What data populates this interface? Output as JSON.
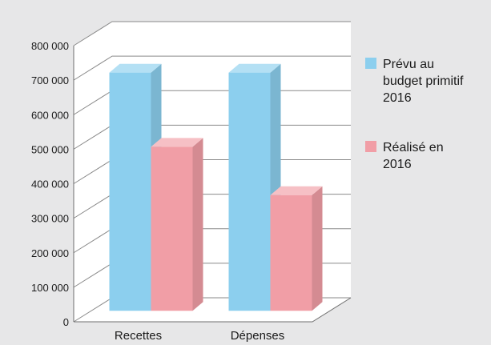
{
  "chart_data": {
    "type": "bar",
    "title": "",
    "xlabel": "",
    "ylabel": "",
    "categories": [
      "Recettes",
      "Dépenses"
    ],
    "series": [
      {
        "name": "Prévu au budget primitif 2016",
        "values": [
          690000,
          690000
        ],
        "color": "#8ccfee"
      },
      {
        "name": "Réalisé en 2016",
        "values": [
          475000,
          335000
        ],
        "color": "#f19ea6"
      }
    ],
    "ylim": [
      0,
      800000
    ],
    "yticks": [
      0,
      100000,
      200000,
      300000,
      400000,
      500000,
      600000,
      700000,
      800000
    ],
    "ytick_labels": [
      "0",
      "100 000",
      "200 000",
      "300 000",
      "400 000",
      "500 000",
      "600 000",
      "700 000",
      "800 000"
    ],
    "grid": true,
    "legend_position": "right",
    "legend_lines": [
      [
        "Prévu au",
        "budget primitif",
        "2016"
      ],
      [
        "Réalisé en",
        "2016"
      ]
    ]
  }
}
